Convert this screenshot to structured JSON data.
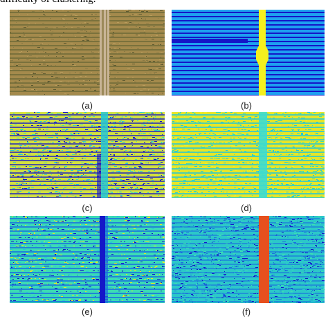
{
  "header": {
    "text": "difficulty of clustering."
  },
  "panels": [
    {
      "label": "(a)",
      "kind": "photo"
    },
    {
      "label": "(b)",
      "kind": "binary-two-class"
    },
    {
      "label": "(c)",
      "kind": "noisy-clusters"
    },
    {
      "label": "(d)",
      "kind": "noisy-clusters-light"
    },
    {
      "label": "(e)",
      "kind": "noisy-clusters-dark-center"
    },
    {
      "label": "(f)",
      "kind": "noisy-clusters-orange-center"
    }
  ],
  "colors": {
    "photo_soil": "#a48a4c",
    "photo_row": "#6f6a38",
    "photo_path": "#c8b496",
    "deep_blue": "#1416c8",
    "mid_blue": "#1a6ee0",
    "cyan": "#28c8d2",
    "teal": "#3cdcb4",
    "yellow": "#e6e628",
    "bright_yellow": "#f5f01e",
    "orange": "#e6501e",
    "light_blue": "#1ea0f0"
  }
}
